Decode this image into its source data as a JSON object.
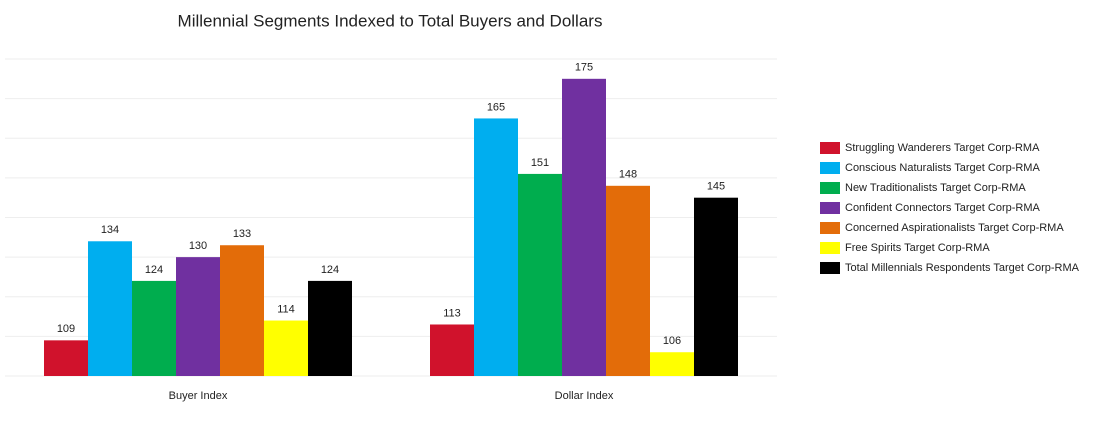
{
  "chart_data": {
    "type": "bar",
    "title": "Millennial Segments Indexed to Total Buyers and Dollars",
    "categories": [
      "Buyer Index",
      "Dollar Index"
    ],
    "series": [
      {
        "name": "Struggling Wanderers Target Corp-RMA",
        "color": "#d0122c",
        "values": [
          109,
          113
        ]
      },
      {
        "name": "Conscious Naturalists Target Corp-RMA",
        "color": "#00aeef",
        "values": [
          134,
          165
        ]
      },
      {
        "name": "New Traditionalists Target Corp-RMA",
        "color": "#00ad4e",
        "values": [
          124,
          151
        ]
      },
      {
        "name": "Confident Connectors Target Corp-RMA",
        "color": "#7030a0",
        "values": [
          130,
          175
        ]
      },
      {
        "name": "Concerned Aspirationalists Target Corp-RMA",
        "color": "#e36c09",
        "values": [
          133,
          148
        ]
      },
      {
        "name": "Free Spirits Target Corp-RMA",
        "color": "#ffff00",
        "values": [
          114,
          106
        ]
      },
      {
        "name": "Total Millennials Respondents Target Corp-RMA",
        "color": "#000000",
        "values": [
          124,
          145
        ]
      }
    ],
    "ylim": [
      100,
      180
    ],
    "yticks": [
      100,
      110,
      120,
      130,
      140,
      150,
      160,
      170,
      180
    ],
    "grid": true,
    "legend": "right"
  }
}
